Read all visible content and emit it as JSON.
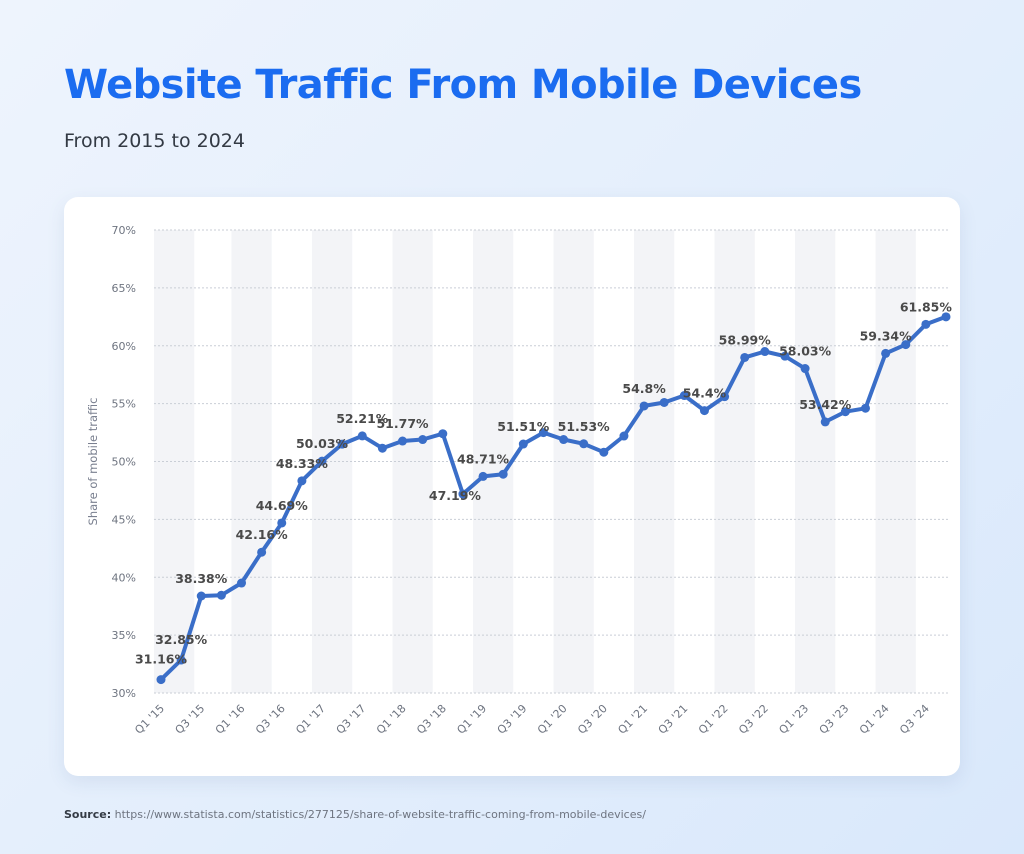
{
  "header": {
    "title": "Website Traffic From Mobile Devices",
    "subtitle": "From 2015 to 2024"
  },
  "source": {
    "label": "Source:",
    "url": "https://www.statista.com/statistics/277125/share-of-website-traffic-coming-from-mobile-devices/"
  },
  "colors": {
    "title": "#1b6cf0",
    "line": "#3a6ec8",
    "grid": "#c9ced6",
    "band": "#f3f4f7"
  },
  "chart_data": {
    "type": "line",
    "title": "Website Traffic From Mobile Devices",
    "ylabel": "Share of mobile traffic",
    "xlabel": "",
    "ylim": [
      30,
      70
    ],
    "yticks": [
      30,
      35,
      40,
      45,
      50,
      55,
      60,
      65,
      70
    ],
    "ytick_labels": [
      "30%",
      "35%",
      "40%",
      "45%",
      "50%",
      "55%",
      "60%",
      "65%",
      "70%"
    ],
    "grid": true,
    "categories": [
      "Q1 '15",
      "Q2 '15",
      "Q3 '15",
      "Q4 '15",
      "Q1 '16",
      "Q2 '16",
      "Q3 '16",
      "Q4 '16",
      "Q1 '17",
      "Q2 '17",
      "Q3 '17",
      "Q4 '17",
      "Q1 '18",
      "Q2 '18",
      "Q3 '18",
      "Q4 '18",
      "Q1 '19",
      "Q2 '19",
      "Q3 '19",
      "Q4 '19",
      "Q1 '20",
      "Q2 '20",
      "Q3 '20",
      "Q4 '20",
      "Q1 '21",
      "Q2 '21",
      "Q3 '21",
      "Q4 '21",
      "Q1 '22",
      "Q2 '22",
      "Q3 '22",
      "Q4 '22",
      "Q1 '23",
      "Q2 '23",
      "Q3 '23",
      "Q4 '23",
      "Q1 '24",
      "Q2 '24",
      "Q3 '24",
      "Q4 '24"
    ],
    "xtick_labels": [
      "Q1 '15",
      "Q3 '15",
      "Q1 '16",
      "Q3 '16",
      "Q1 '17",
      "Q3 '17",
      "Q1 '18",
      "Q3 '18",
      "Q1 '19",
      "Q3 '19",
      "Q1 '20",
      "Q3 '20",
      "Q1 '21",
      "Q3 '21",
      "Q1 '22",
      "Q3 '22",
      "Q1 '23",
      "Q3 '23",
      "Q1 '24",
      "Q3 '24"
    ],
    "values": [
      31.16,
      32.85,
      38.38,
      38.45,
      39.5,
      42.16,
      44.69,
      48.33,
      50.03,
      51.5,
      52.21,
      51.15,
      51.77,
      51.9,
      52.4,
      47.19,
      48.71,
      48.9,
      51.51,
      52.5,
      51.9,
      51.53,
      50.8,
      52.2,
      54.8,
      55.1,
      55.7,
      54.4,
      55.6,
      58.99,
      59.5,
      59.1,
      58.03,
      53.42,
      54.3,
      54.6,
      59.34,
      60.1,
      61.85,
      62.5
    ],
    "data_labels": [
      {
        "index": 0,
        "text": "31.16%"
      },
      {
        "index": 1,
        "text": "32.85%"
      },
      {
        "index": 2,
        "text": "38.38%"
      },
      {
        "index": 5,
        "text": "42.16%"
      },
      {
        "index": 6,
        "text": "44.69%"
      },
      {
        "index": 7,
        "text": "48.33%"
      },
      {
        "index": 8,
        "text": "50.03%"
      },
      {
        "index": 10,
        "text": "52.21%"
      },
      {
        "index": 12,
        "text": "51.77%"
      },
      {
        "index": 15,
        "text": "47.19%"
      },
      {
        "index": 16,
        "text": "48.71%"
      },
      {
        "index": 18,
        "text": "51.51%"
      },
      {
        "index": 21,
        "text": "51.53%"
      },
      {
        "index": 24,
        "text": "54.8%"
      },
      {
        "index": 27,
        "text": "54.4%"
      },
      {
        "index": 29,
        "text": "58.99%"
      },
      {
        "index": 32,
        "text": "58.03%"
      },
      {
        "index": 33,
        "text": "53.42%"
      },
      {
        "index": 36,
        "text": "59.34%"
      },
      {
        "index": 38,
        "text": "61.85%"
      }
    ]
  }
}
